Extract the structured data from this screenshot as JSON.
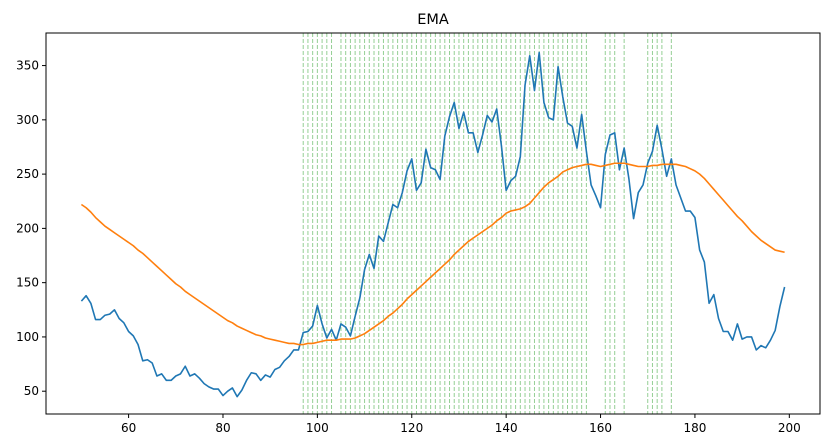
{
  "chart_data": {
    "type": "line",
    "title": "EMA",
    "xlabel": "",
    "ylabel": "",
    "xlim": [
      42.5,
      206.5
    ],
    "ylim": [
      29,
      380
    ],
    "x_ticks": [
      60,
      80,
      100,
      120,
      140,
      160,
      180,
      200
    ],
    "y_ticks": [
      50,
      100,
      150,
      200,
      250,
      300,
      350
    ],
    "grid": false,
    "colors": {
      "price": "#1f77b4",
      "ema": "#ff7f0e",
      "markers": "#2ca02c"
    },
    "series": [
      {
        "x": [
          50,
          51,
          52,
          53,
          54,
          55,
          56,
          57,
          58,
          59,
          60,
          61,
          62,
          63,
          64,
          65,
          66,
          67,
          68,
          69,
          70,
          71,
          72,
          73,
          74,
          75,
          76,
          77,
          78,
          79,
          80,
          81,
          82,
          83,
          84,
          85,
          86,
          87,
          88,
          89,
          90,
          91,
          92,
          93,
          94,
          95,
          96,
          97,
          98,
          99,
          100,
          101,
          102,
          103,
          104,
          105,
          106,
          107,
          108,
          109,
          110,
          111,
          112,
          113,
          114,
          115,
          116,
          117,
          118,
          119,
          120,
          121,
          122,
          123,
          124,
          125,
          126,
          127,
          128,
          129,
          130,
          131,
          132,
          133,
          134,
          135,
          136,
          137,
          138,
          139,
          140,
          141,
          142,
          143,
          144,
          145,
          146,
          147,
          148,
          149,
          150,
          151,
          152,
          153,
          154,
          155,
          156,
          157,
          158,
          159,
          160,
          161,
          162,
          163,
          164,
          165,
          166,
          167,
          168,
          169,
          170,
          171,
          172,
          173,
          174,
          175,
          176,
          177,
          178,
          179,
          180,
          181,
          182,
          183,
          184,
          185,
          186,
          187,
          188,
          189,
          190,
          191,
          192,
          193,
          194,
          195,
          196,
          197,
          198,
          199
        ],
        "values": [
          133,
          138,
          131,
          116,
          116,
          120,
          121,
          125,
          117,
          113,
          105,
          101,
          93,
          78,
          79,
          76,
          64,
          66,
          60,
          60,
          64,
          66,
          73,
          64,
          66,
          62,
          57,
          54,
          52,
          52,
          46,
          50,
          53,
          45,
          51,
          60,
          67,
          66,
          60,
          65,
          63,
          70,
          72,
          78,
          82,
          88,
          88,
          104,
          105,
          110,
          129,
          112,
          99,
          107,
          97,
          112,
          109,
          101,
          119,
          136,
          162,
          176,
          163,
          193,
          188,
          205,
          222,
          219,
          233,
          253,
          264,
          235,
          242,
          273,
          256,
          254,
          245,
          285,
          303,
          316,
          292,
          307,
          288,
          288,
          270,
          286,
          304,
          298,
          310,
          276,
          235,
          244,
          248,
          266,
          332,
          359,
          327,
          362,
          316,
          302,
          300,
          349,
          321,
          297,
          294,
          274,
          305,
          271,
          240,
          230,
          219,
          268,
          286,
          288,
          254,
          274,
          246,
          209,
          233,
          240,
          260,
          271,
          295,
          273,
          248,
          264,
          240,
          228,
          216,
          216,
          210,
          180,
          169,
          131,
          139,
          117,
          105,
          105,
          97,
          112,
          98,
          100,
          100,
          88,
          92,
          90,
          97,
          106,
          128,
          146
        ]
      },
      {
        "x": [
          50,
          51,
          52,
          53,
          54,
          55,
          56,
          57,
          58,
          59,
          60,
          61,
          62,
          63,
          64,
          65,
          66,
          67,
          68,
          69,
          70,
          71,
          72,
          73,
          74,
          75,
          76,
          77,
          78,
          79,
          80,
          81,
          82,
          83,
          84,
          85,
          86,
          87,
          88,
          89,
          90,
          91,
          92,
          93,
          94,
          95,
          96,
          97,
          98,
          99,
          100,
          101,
          102,
          103,
          104,
          105,
          106,
          107,
          108,
          109,
          110,
          111,
          112,
          113,
          114,
          115,
          116,
          117,
          118,
          119,
          120,
          121,
          122,
          123,
          124,
          125,
          126,
          127,
          128,
          129,
          130,
          131,
          132,
          133,
          134,
          135,
          136,
          137,
          138,
          139,
          140,
          141,
          142,
          143,
          144,
          145,
          146,
          147,
          148,
          149,
          150,
          151,
          152,
          153,
          154,
          155,
          156,
          157,
          158,
          159,
          160,
          161,
          162,
          163,
          164,
          165,
          166,
          167,
          168,
          169,
          170,
          171,
          172,
          173,
          174,
          175,
          176,
          177,
          178,
          179,
          180,
          181,
          182,
          183,
          184,
          185,
          186,
          187,
          188,
          189,
          190,
          191,
          192,
          193,
          194,
          195,
          196,
          197,
          198,
          199
        ],
        "values": [
          222,
          219,
          215,
          210,
          206,
          202,
          199,
          196,
          193,
          190,
          187,
          184,
          180,
          177,
          173,
          169,
          165,
          161,
          157,
          153,
          149,
          146,
          142,
          139,
          136,
          133,
          130,
          127,
          124,
          121,
          118,
          115,
          113,
          110,
          108,
          106,
          104,
          102,
          101,
          99,
          98,
          97,
          96,
          95,
          94,
          94,
          93,
          93,
          94,
          94,
          95,
          96,
          97,
          97,
          97,
          98,
          98,
          98,
          99,
          101,
          103,
          106,
          109,
          112,
          115,
          119,
          122,
          126,
          130,
          135,
          139,
          143,
          147,
          151,
          155,
          159,
          163,
          167,
          171,
          176,
          180,
          184,
          188,
          191,
          194,
          197,
          200,
          203,
          207,
          210,
          214,
          216,
          217,
          218,
          220,
          223,
          228,
          233,
          238,
          242,
          245,
          248,
          252,
          254,
          256,
          257,
          258,
          259,
          259,
          258,
          257,
          258,
          259,
          260,
          260,
          260,
          259,
          258,
          257,
          257,
          257,
          258,
          258,
          259,
          259,
          259,
          259,
          258,
          257,
          255,
          253,
          250,
          246,
          241,
          236,
          231,
          226,
          221,
          216,
          211,
          207,
          202,
          197,
          193,
          189,
          186,
          183,
          180,
          179,
          178
        ]
      }
    ],
    "vlines": [
      97,
      98,
      99,
      100,
      101,
      102,
      103,
      105,
      106,
      107,
      108,
      109,
      110,
      111,
      112,
      113,
      114,
      115,
      116,
      117,
      118,
      119,
      120,
      121,
      122,
      123,
      124,
      125,
      126,
      127,
      128,
      129,
      130,
      131,
      132,
      133,
      134,
      135,
      136,
      137,
      138,
      139,
      140,
      141,
      142,
      143,
      144,
      145,
      146,
      147,
      148,
      149,
      150,
      151,
      152,
      153,
      154,
      155,
      156,
      157,
      161,
      162,
      163,
      165,
      170,
      171,
      172,
      173,
      175
    ]
  }
}
